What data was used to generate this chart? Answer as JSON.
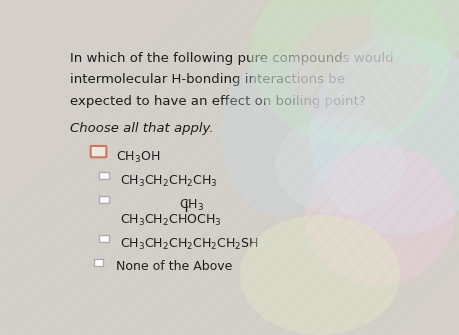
{
  "title_lines": [
    "In which of the following pure compounds would",
    "intermolecular H-bonding interactions be",
    "expected to have an effect on boiling point?"
  ],
  "subtitle": "Choose all that apply.",
  "bg_color": "#d8d4cc",
  "text_color": "#1a1a1a",
  "checkbox_color": "#888888",
  "title_fontsize": 9.5,
  "subtitle_fontsize": 9.5,
  "option_fontsize": 9.0,
  "fig_width": 4.6,
  "fig_height": 3.35,
  "dpi": 100
}
